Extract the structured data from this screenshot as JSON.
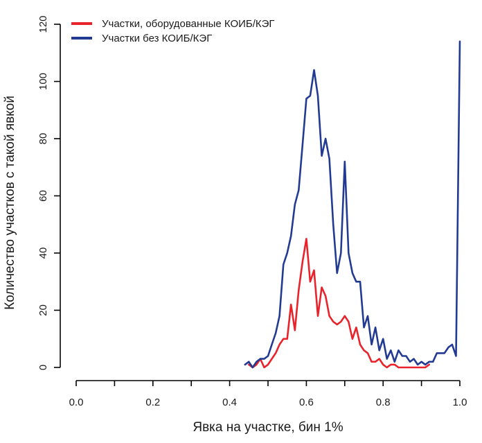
{
  "chart_data": {
    "type": "line",
    "title": "",
    "xlabel": "Явка на участке, бин 1%",
    "ylabel": "Количество участков с такой явкой",
    "xlim": [
      0.0,
      1.0
    ],
    "ylim": [
      0,
      120
    ],
    "x_ticks": [
      "0.0",
      "0.2",
      "0.4",
      "0.6",
      "0.8",
      "1.0"
    ],
    "y_ticks": [
      "0",
      "20",
      "40",
      "60",
      "80",
      "100",
      "120"
    ],
    "grid": false,
    "legend_position": "top-left",
    "series": [
      {
        "name": "Участки, оборудованные КОИБ/КЭГ",
        "color": "#e8232b",
        "x": [
          0.45,
          0.46,
          0.47,
          0.48,
          0.49,
          0.5,
          0.51,
          0.52,
          0.53,
          0.54,
          0.55,
          0.56,
          0.57,
          0.58,
          0.59,
          0.6,
          0.61,
          0.62,
          0.63,
          0.64,
          0.65,
          0.66,
          0.67,
          0.68,
          0.69,
          0.7,
          0.71,
          0.72,
          0.73,
          0.74,
          0.75,
          0.76,
          0.77,
          0.78,
          0.79,
          0.8,
          0.81,
          0.82,
          0.83,
          0.84,
          0.85,
          0.86,
          0.87,
          0.88,
          0.89,
          0.9,
          0.91,
          0.92
        ],
        "y": [
          1,
          0,
          1,
          3,
          0,
          1,
          3,
          5,
          8,
          10,
          10,
          22,
          13,
          27,
          37,
          45,
          30,
          34,
          18,
          28,
          25,
          18,
          16,
          15,
          16,
          18,
          16,
          10,
          14,
          8,
          6,
          5,
          2,
          2,
          3,
          1,
          0,
          1,
          1,
          0,
          0,
          0,
          0,
          0,
          0,
          0,
          0,
          1
        ]
      },
      {
        "name": "Участки без КОИБ/КЭГ",
        "color": "#233a92",
        "x": [
          0.44,
          0.45,
          0.46,
          0.47,
          0.48,
          0.49,
          0.5,
          0.51,
          0.52,
          0.53,
          0.54,
          0.55,
          0.56,
          0.57,
          0.58,
          0.59,
          0.6,
          0.61,
          0.62,
          0.63,
          0.64,
          0.65,
          0.66,
          0.67,
          0.68,
          0.69,
          0.7,
          0.71,
          0.72,
          0.73,
          0.74,
          0.75,
          0.76,
          0.77,
          0.78,
          0.79,
          0.8,
          0.81,
          0.82,
          0.83,
          0.84,
          0.85,
          0.86,
          0.87,
          0.88,
          0.89,
          0.9,
          0.91,
          0.92,
          0.93,
          0.94,
          0.95,
          0.96,
          0.97,
          0.98,
          0.99,
          1.0
        ],
        "y": [
          1,
          2,
          0,
          2,
          3,
          3,
          4,
          8,
          12,
          18,
          36,
          40,
          46,
          57,
          62,
          78,
          94,
          95,
          104,
          95,
          74,
          80,
          73,
          50,
          33,
          40,
          72,
          40,
          33,
          30,
          30,
          14,
          18,
          8,
          14,
          6,
          10,
          3,
          6,
          2,
          6,
          4,
          4,
          2,
          3,
          1,
          2,
          1,
          2,
          2,
          5,
          5,
          5,
          7,
          8,
          4,
          114
        ]
      }
    ]
  }
}
